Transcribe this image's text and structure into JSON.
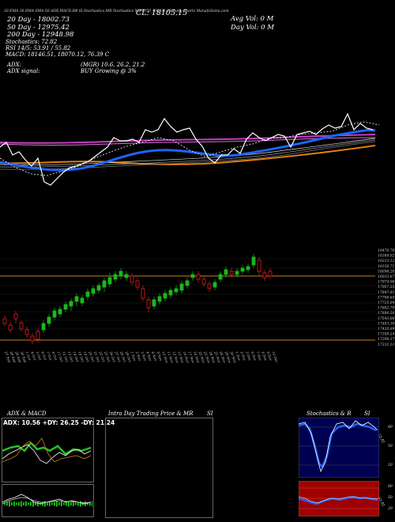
{
  "header": {
    "legend_line": "20 EMA   30 EMA   SMA 50   ADX,MACD,BB  SI,Stochastics,MR  Stochastics   NIFTY50_VALUE_20  Daily Charts MunafaSutra.com",
    "close_price": "CL: 18105.15",
    "ema_20": "20   Day  - 18002.73",
    "ema_50": "50   Day  - 12975.42",
    "ema_200": "200  Day  - 12948.98",
    "stochastics": "Stochastics: 72.82",
    "rsi": "RSI 14/5: 53.91 / 55.82",
    "macd": "MACD: 18146.51, 18070.12, 76.39 C",
    "avg_vol": "Avg Vol:  0   M",
    "day_vol": "Day Vol:  0   M",
    "adx": "ADX:",
    "adx_values": "(MGR) 10.6, 26.2, 21.2",
    "adx_signal_label": "ADX  signal:",
    "adx_signal": "BUY Growing @ 3%"
  },
  "price_axis": {
    "labels": [
      "18470.76",
      "18388.92",
      "18223.12",
      "18158.71",
      "18096.28",
      "18033.67",
      "17974.06",
      "17907.55",
      "17847.81",
      "17786.65",
      "17725.04",
      "17662.79",
      "17606.58",
      "17543.86",
      "17483.30",
      "17420.89",
      "17358.24",
      "17296.17",
      "17232.11"
    ]
  },
  "date_axis": {
    "labels": [
      "27 Sep",
      "28 Sep",
      "29 Sep",
      "30 Sep",
      "1 Oct",
      "4 Oct",
      "5 Oct",
      "6 Oct",
      "7 Oct",
      "8 Oct",
      "11 Oct",
      "12 Oct",
      "13 Oct",
      "14 Oct",
      "18 Oct",
      "19 Oct",
      "20 Oct",
      "21 Oct",
      "22 Oct",
      "25 Oct",
      "26 Oct",
      "27 Oct",
      "28 Oct",
      "29 Oct",
      "1 Nov",
      "2 Nov",
      "3 Nov",
      "4 Nov",
      "8 Nov",
      "9 Nov",
      "10 Nov",
      "11 Nov",
      "12 Nov",
      "15 Nov",
      "16 Nov",
      "17 Nov",
      "18 Nov",
      "22 Nov",
      "23 Nov",
      "24 Nov",
      "25 Nov",
      "26 Nov",
      "29 Nov",
      "30 Nov",
      "1 Dec",
      "2 Dec",
      "3 Dec",
      "6 Dec",
      "7 Dec",
      "8 Dec",
      "9 Dec",
      "10 Dec"
    ]
  },
  "panels": {
    "adx_title": "ADX  & MACD",
    "adx_readout": "ADX: 10.56  +DY: 26.25 -DY: 21.24",
    "intraday_title": "Intra  Day Trading Price  & MR",
    "intraday_suffix": "SI",
    "stoch_title": "Stochastics & R",
    "stoch_suffix": "SI",
    "stoch_ticks": [
      "80",
      "50",
      "20"
    ],
    "stoch_value": "72.82",
    "rsi_ticks": [
      "80",
      "50",
      "20"
    ],
    "rsi_value": "55.82"
  },
  "colors": {
    "background": "#000000",
    "up_candle": "#1ab81a",
    "down_candle": "#e02020",
    "ema_blue": "#1e64ff",
    "ema_orange": "#e08010",
    "ema_purple": "#c040c0",
    "stoch_bg": "#000050",
    "rsi_bg": "#a00000"
  }
}
